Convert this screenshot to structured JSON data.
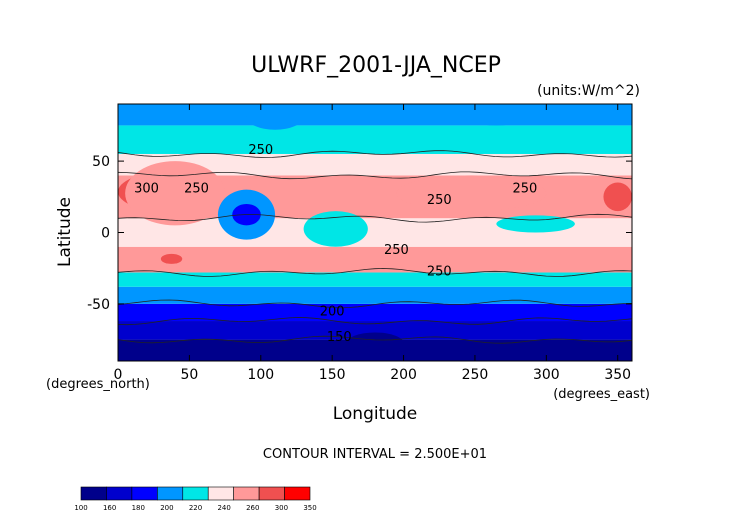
{
  "chart_data": {
    "type": "heatmap",
    "title": "ULWRF_2001-JJA_NCEP",
    "units": "(units:W/m^2)",
    "xlabel": "Longitude",
    "ylabel": "Latitude",
    "x_unit_label": "(degrees_east)",
    "y_unit_label": "(degrees_north)",
    "xlim": [
      0,
      360
    ],
    "ylim": [
      -90,
      90
    ],
    "x_ticks": [
      0,
      50,
      100,
      150,
      200,
      250,
      300,
      350
    ],
    "y_ticks": [
      -50,
      0,
      50
    ],
    "contour_interval_text": "CONTOUR INTERVAL = 2.500E+01",
    "contour_labels": [
      {
        "text": "250",
        "lon": 55,
        "lat": 28
      },
      {
        "text": "250",
        "lon": 225,
        "lat": 20
      },
      {
        "text": "250",
        "lon": 285,
        "lat": 28
      },
      {
        "text": "300",
        "lon": 20,
        "lat": 28
      },
      {
        "text": "250",
        "lon": 100,
        "lat": 55
      },
      {
        "text": "250",
        "lon": 195,
        "lat": -15
      },
      {
        "text": "250",
        "lon": 225,
        "lat": -30
      },
      {
        "text": "200",
        "lon": 150,
        "lat": -58
      },
      {
        "text": "150",
        "lon": 155,
        "lat": -76
      }
    ],
    "colorbar": {
      "ticks": [
        "100",
        "160",
        "180",
        "200",
        "220",
        "240",
        "260",
        "300",
        "350"
      ],
      "colors": [
        "#00008b",
        "#0000cd",
        "#0000ff",
        "#0096ff",
        "#00e6e6",
        "#ffe6e6",
        "#ff9999",
        "#f05050",
        "#ff0000"
      ]
    },
    "bands": [
      {
        "lat_min": -90,
        "lat_max": -75,
        "value": 140
      },
      {
        "lat_min": -75,
        "lat_max": -62,
        "value": 170
      },
      {
        "lat_min": -62,
        "lat_max": -50,
        "value": 190
      },
      {
        "lat_min": -50,
        "lat_max": -38,
        "value": 210
      },
      {
        "lat_min": -38,
        "lat_max": -28,
        "value": 230
      },
      {
        "lat_min": -28,
        "lat_max": -10,
        "value": 265
      },
      {
        "lat_min": -10,
        "lat_max": 10,
        "value": 250
      },
      {
        "lat_min": 10,
        "lat_max": 40,
        "value": 280
      },
      {
        "lat_min": 40,
        "lat_max": 55,
        "value": 245
      },
      {
        "lat_min": 55,
        "lat_max": 75,
        "value": 225
      },
      {
        "lat_min": 75,
        "lat_max": 90,
        "value": 215
      }
    ],
    "regions": [
      {
        "lon": [
          0,
          65
        ],
        "lat": [
          15,
          42
        ],
        "value": 310
      },
      {
        "lon": [
          5,
          75
        ],
        "lat": [
          5,
          50
        ],
        "value": 270
      },
      {
        "lon": [
          70,
          110
        ],
        "lat": [
          -5,
          30
        ],
        "value": 215
      },
      {
        "lon": [
          80,
          100
        ],
        "lat": [
          5,
          20
        ],
        "value": 195
      },
      {
        "lon": [
          130,
          175
        ],
        "lat": [
          -10,
          15
        ],
        "value": 230
      },
      {
        "lon": [
          195,
          300
        ],
        "lat": [
          15,
          40
        ],
        "value": 285
      },
      {
        "lon": [
          265,
          320
        ],
        "lat": [
          0,
          12
        ],
        "value": 225
      },
      {
        "lon": [
          340,
          360
        ],
        "lat": [
          15,
          35
        ],
        "value": 310
      },
      {
        "lon": [
          90,
          130
        ],
        "lat": [
          72,
          90
        ],
        "value": 205
      },
      {
        "lon": [
          240,
          290
        ],
        "lat": [
          75,
          90
        ],
        "value": 205
      },
      {
        "lon": [
          30,
          45
        ],
        "lat": [
          -22,
          -15
        ],
        "value": 310
      },
      {
        "lon": [
          160,
          200
        ],
        "lat": [
          -85,
          -70
        ],
        "value": 120
      }
    ]
  }
}
